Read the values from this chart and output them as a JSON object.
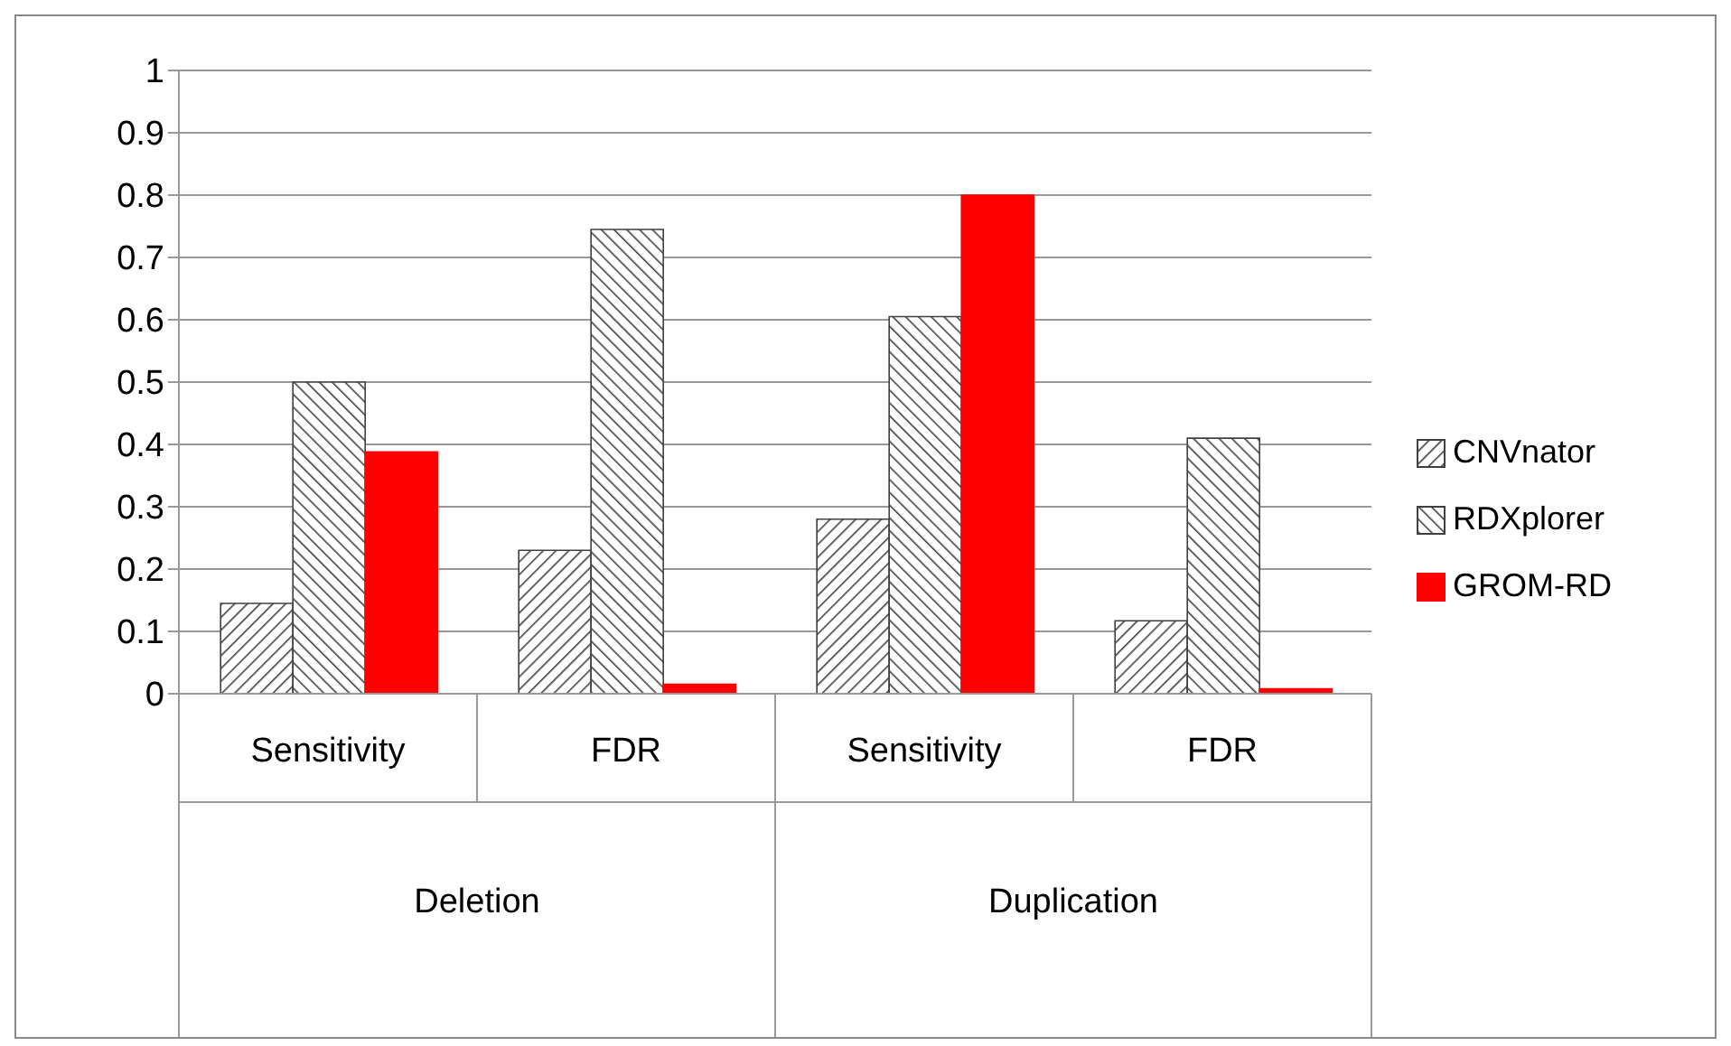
{
  "chart_data": {
    "type": "bar",
    "categories": [
      "Sensitivity",
      "FDR",
      "Sensitivity",
      "FDR"
    ],
    "series": [
      {
        "name": "CNVnator",
        "color": "#404040",
        "values": [
          0.145,
          0.23,
          0.28,
          0.117
        ]
      },
      {
        "name": "RDXplorer",
        "color": "#404040",
        "values": [
          0.5,
          0.745,
          0.605,
          0.41
        ]
      },
      {
        "name": "GROM-RD",
        "color": "#ff0000",
        "values": [
          0.388,
          0.015,
          0.8,
          0.008
        ]
      }
    ],
    "annotations": [
      "Deletion",
      "Duplication"
    ],
    "ylim": [
      0,
      1
    ],
    "yticks": [
      0,
      0.1,
      0.2,
      0.3,
      0.4,
      0.5,
      0.6,
      0.7,
      0.8,
      0.9,
      1
    ],
    "grid": "y",
    "legend": "right"
  }
}
